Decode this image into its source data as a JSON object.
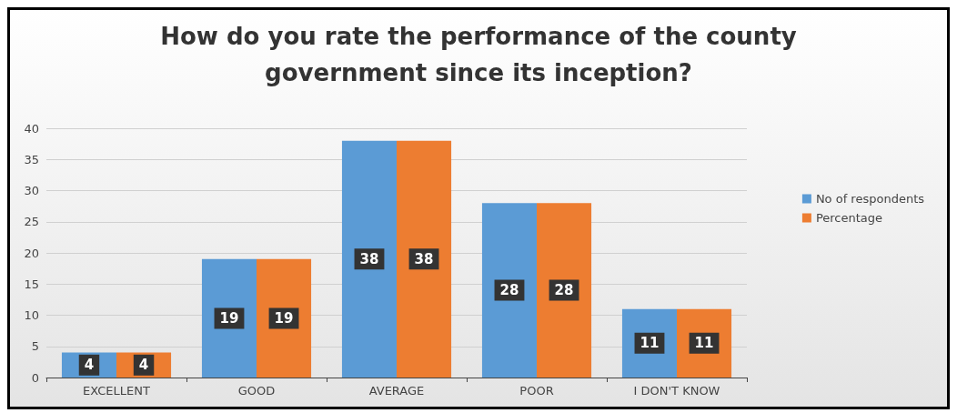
{
  "chart_data": {
    "type": "bar",
    "title": "How do you rate the performance of the county\ngovernment since its inception?",
    "categories": [
      "EXCELLENT",
      "GOOD",
      "AVERAGE",
      "POOR",
      "I DON'T KNOW"
    ],
    "series": [
      {
        "name": "No of respondents",
        "color": "#5b9bd5",
        "values": [
          4,
          19,
          38,
          28,
          11
        ]
      },
      {
        "name": "Percentage",
        "color": "#ed7d31",
        "values": [
          4,
          19,
          38,
          28,
          11
        ]
      }
    ],
    "ylim": [
      0,
      40
    ],
    "yticks": [
      0,
      5,
      10,
      15,
      20,
      25,
      30,
      35,
      40
    ],
    "grid": "y",
    "legend": "right",
    "data_labels": true
  }
}
